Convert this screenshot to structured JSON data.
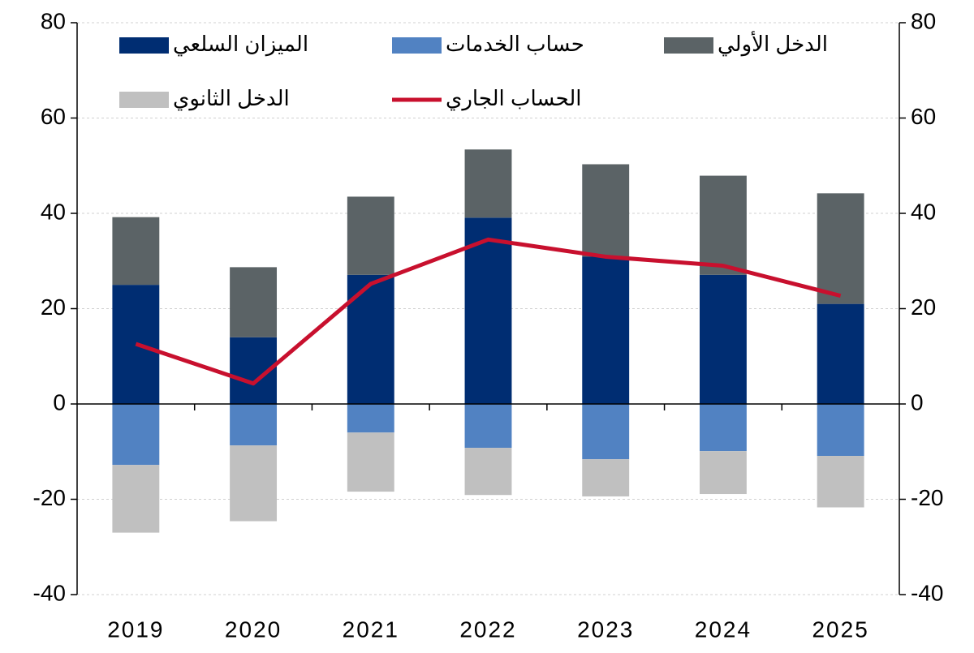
{
  "chart_data": {
    "type": "bar",
    "stacked": true,
    "categories": [
      "2019",
      "2020",
      "2021",
      "2022",
      "2023",
      "2024",
      "2025"
    ],
    "series": [
      {
        "name": "الميزان السلعي",
        "color": "#002d72",
        "values": [
          25,
          14,
          27.1,
          39.1,
          30.9,
          27.1,
          21
        ]
      },
      {
        "name": "حساب الخدمات",
        "color": "#5182c2",
        "values": [
          -12.8,
          -8.7,
          -6,
          -9.2,
          -11.6,
          -9.9,
          -10.9
        ]
      },
      {
        "name": "الدخل الأولي",
        "color": "#5b6366",
        "values": [
          14.2,
          14.7,
          16.4,
          14.3,
          19.4,
          20.8,
          23.2
        ]
      },
      {
        "name": "الدخل الثانوي",
        "color": "#c0c0c0",
        "values": [
          -14.2,
          -15.9,
          -12.4,
          -9.9,
          -7.8,
          -9,
          -10.8
        ]
      },
      {
        "name": "الحساب الجاري",
        "color": "#c8102e",
        "type": "line",
        "values": [
          12.6,
          4.3,
          25.2,
          34.5,
          30.9,
          29,
          22.7
        ]
      }
    ],
    "ylim": [
      -40,
      80
    ],
    "yticks": [
      -40,
      -20,
      0,
      20,
      40,
      60,
      80
    ],
    "y2lim": [
      -40,
      80
    ],
    "y2ticks": [
      -40,
      -20,
      0,
      20,
      40,
      60,
      80
    ],
    "grid": true,
    "legend": "top"
  }
}
